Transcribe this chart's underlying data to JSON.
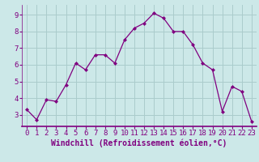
{
  "x": [
    0,
    1,
    2,
    3,
    4,
    5,
    6,
    7,
    8,
    9,
    10,
    11,
    12,
    13,
    14,
    15,
    16,
    17,
    18,
    19,
    20,
    21,
    22,
    23
  ],
  "y": [
    3.3,
    2.7,
    3.9,
    3.8,
    4.8,
    6.1,
    5.7,
    6.6,
    6.6,
    6.1,
    7.5,
    8.2,
    8.5,
    9.1,
    8.8,
    8.0,
    8.0,
    7.2,
    6.1,
    5.7,
    3.2,
    4.7,
    4.4,
    2.6
  ],
  "ylim": [
    2.3,
    9.6
  ],
  "yticks": [
    3,
    4,
    5,
    6,
    7,
    8,
    9
  ],
  "xticks": [
    0,
    1,
    2,
    3,
    4,
    5,
    6,
    7,
    8,
    9,
    10,
    11,
    12,
    13,
    14,
    15,
    16,
    17,
    18,
    19,
    20,
    21,
    22,
    23
  ],
  "xlabel": "Windchill (Refroidissement éolien,°C)",
  "line_color": "#800080",
  "marker_color": "#800080",
  "bg_color": "#cce8e8",
  "grid_color": "#aacccc",
  "axis_color": "#800080",
  "tick_color": "#800080",
  "label_color": "#800080",
  "tick_fontsize": 6.5,
  "xlabel_fontsize": 7.0
}
